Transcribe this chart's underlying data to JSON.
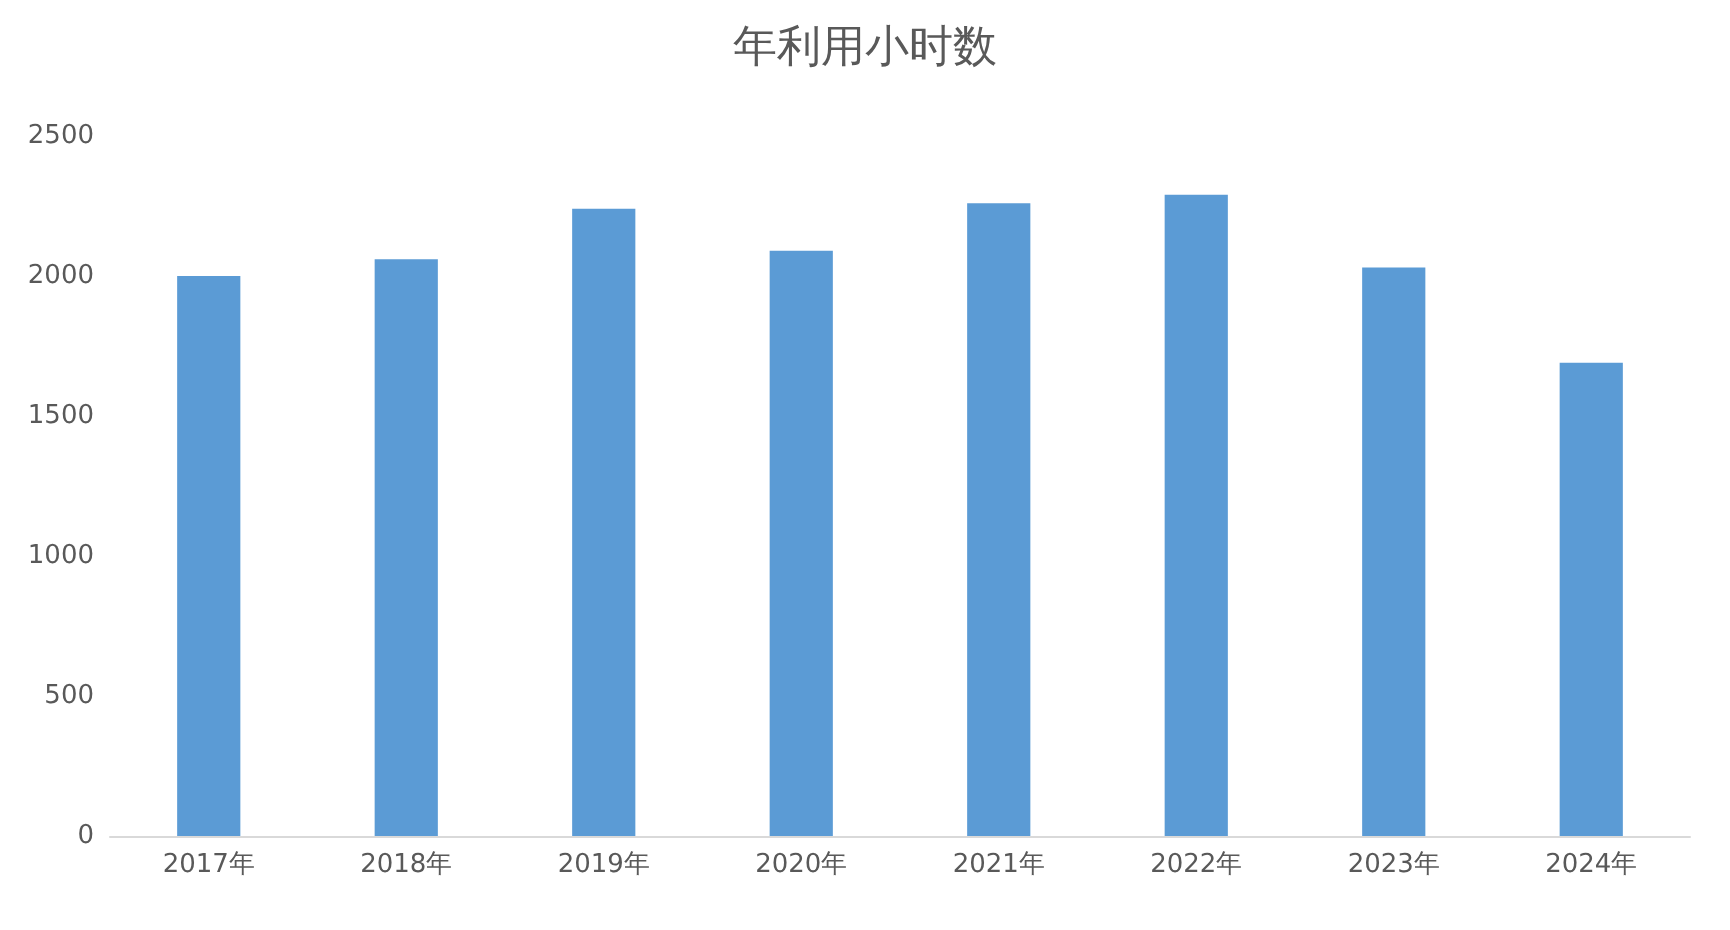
{
  "chart_data": {
    "type": "bar",
    "title": "年利用小时数",
    "categories": [
      "2017年",
      "2018年",
      "2019年",
      "2020年",
      "2021年",
      "2022年",
      "2023年",
      "2024年"
    ],
    "values": [
      2000,
      2060,
      2240,
      2090,
      2260,
      2290,
      2030,
      1690
    ],
    "color": "#5b9bd5",
    "ylim": [
      0,
      2500
    ],
    "yticks": [
      0,
      500,
      1000,
      1500,
      2000,
      2500
    ],
    "grid": false
  }
}
